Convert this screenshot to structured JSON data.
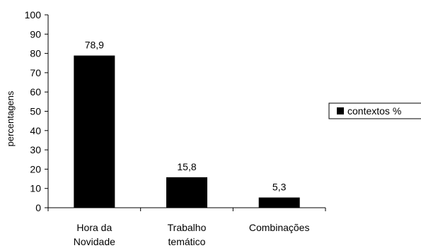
{
  "chart_data": {
    "type": "bar",
    "categories": [
      [
        "Hora da",
        "Novidade"
      ],
      [
        "Trabalho",
        "temático"
      ],
      [
        "Combinações"
      ]
    ],
    "series": [
      {
        "name": "contextos %",
        "values": [
          78.9,
          15.8,
          5.3
        ],
        "color": "#000000"
      }
    ],
    "data_labels": [
      "78,9",
      "15,8",
      "5,3"
    ],
    "ylabel": "percentagens",
    "xlabel": "",
    "ylim": [
      0,
      100
    ],
    "yticks": [
      0,
      10,
      20,
      30,
      40,
      50,
      60,
      70,
      80,
      90,
      100
    ],
    "grid": false,
    "legend_position": "right"
  }
}
